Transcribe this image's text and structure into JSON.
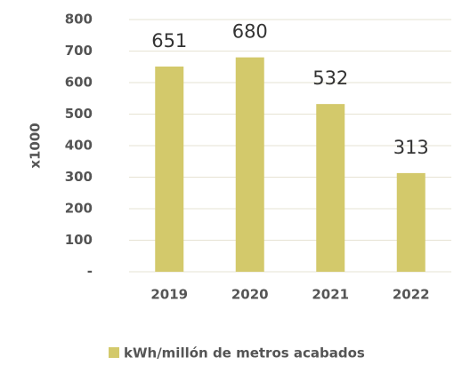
{
  "chart_data": {
    "type": "bar",
    "categories": [
      "2019",
      "2020",
      "2021",
      "2022"
    ],
    "series": [
      {
        "name": "kWh/millón de metros acabados",
        "color": "#d3c96b",
        "values": [
          651,
          680,
          532,
          313
        ]
      }
    ],
    "ylabel": "x1000",
    "ylim": [
      0,
      800
    ],
    "yticks": [
      {
        "value": 0,
        "label": "-"
      },
      100,
      200,
      300,
      400,
      500,
      600,
      700,
      800
    ],
    "grid": true,
    "legend": "bottom"
  }
}
